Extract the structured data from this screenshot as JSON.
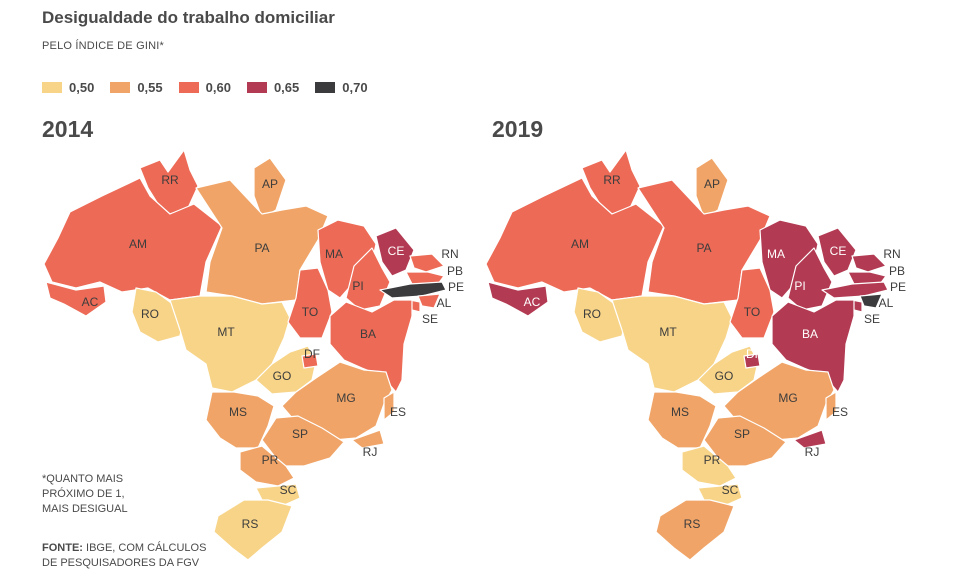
{
  "title": "Desigualdade do trabalho domiciliar",
  "subtitle": "PELO ÍNDICE DE GINI*",
  "legend": [
    {
      "label": "0,50",
      "color": "#f7d488"
    },
    {
      "label": "0,55",
      "color": "#f0a467"
    },
    {
      "label": "0,60",
      "color": "#ec6a56"
    },
    {
      "label": "0,65",
      "color": "#b23a52"
    },
    {
      "label": "0,70",
      "color": "#3b3a3c"
    }
  ],
  "maps": [
    {
      "year": "2014",
      "states": {
        "RR": "0,60",
        "AM": "0,60",
        "AC": "0,60",
        "PA": "0,55",
        "AP": "0,55",
        "RO": "0,50",
        "MT": "0,50",
        "TO": "0,60",
        "MA": "0,60",
        "PI": "0,60",
        "CE": "0,65",
        "RN": "0,60",
        "PB": "0,60",
        "PE": "0,70",
        "AL": "0,60",
        "SE": "0,60",
        "BA": "0,60",
        "GO": "0,50",
        "DF": "0,60",
        "MS": "0,55",
        "MG": "0,55",
        "ES": "0,55",
        "RJ": "0,55",
        "SP": "0,55",
        "PR": "0,55",
        "SC": "0,50",
        "RS": "0,50"
      }
    },
    {
      "year": "2019",
      "states": {
        "RR": "0,60",
        "AM": "0,60",
        "AC": "0,65",
        "PA": "0,60",
        "AP": "0,55",
        "RO": "0,50",
        "MT": "0,50",
        "TO": "0,60",
        "MA": "0,65",
        "PI": "0,65",
        "CE": "0,65",
        "RN": "0,65",
        "PB": "0,65",
        "PE": "0,65",
        "AL": "0,70",
        "SE": "0,65",
        "BA": "0,65",
        "GO": "0,50",
        "DF": "0,65",
        "MS": "0,55",
        "MG": "0,55",
        "ES": "0,55",
        "RJ": "0,65",
        "SP": "0,55",
        "PR": "0,50",
        "SC": "0,50",
        "RS": "0,55"
      }
    }
  ],
  "note": [
    "*QUANTO MAIS",
    "PRÓXIMO DE 1,",
    "MAIS DESIGUAL"
  ],
  "source": {
    "label": "FONTE:",
    "lines": [
      "IBGE, COM CÁLCULOS",
      "DE PESQUISADORES DA FGV"
    ]
  }
}
